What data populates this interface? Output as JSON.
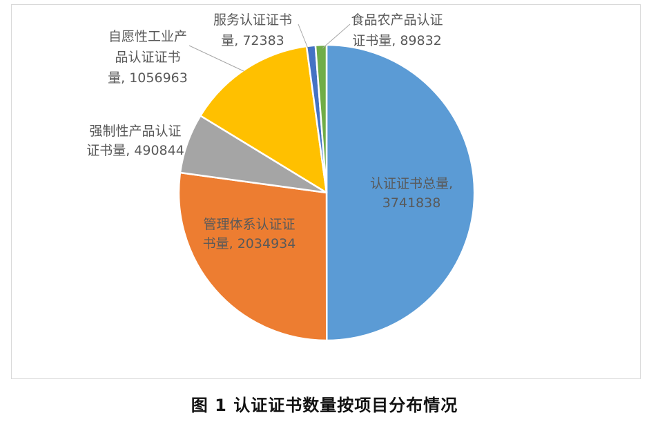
{
  "chart_data": {
    "type": "pie",
    "title": "",
    "slices": [
      {
        "label_lines": [
          "认证证书总量,",
          "3741838"
        ],
        "value": 3741838,
        "color": "#5b9bd5"
      },
      {
        "label_lines": [
          "管理体系认证证",
          "书量, 2034934"
        ],
        "value": 2034934,
        "color": "#ed7d31"
      },
      {
        "label_lines": [
          "强制性产品认证",
          "证书量, 490844"
        ],
        "value": 490844,
        "color": "#a5a5a5"
      },
      {
        "label_lines": [
          "自愿性工业产",
          "品认证证书",
          "量, 1056963"
        ],
        "value": 1056963,
        "color": "#ffc000"
      },
      {
        "label_lines": [
          "服务认证证书",
          "量, 72383"
        ],
        "value": 72383,
        "color": "#4472c4"
      },
      {
        "label_lines": [
          "食品农产品认证",
          "证书量, 89832"
        ],
        "value": 89832,
        "color": "#70ad47"
      }
    ]
  },
  "caption": "图 1  认证证书数量按项目分布情况"
}
